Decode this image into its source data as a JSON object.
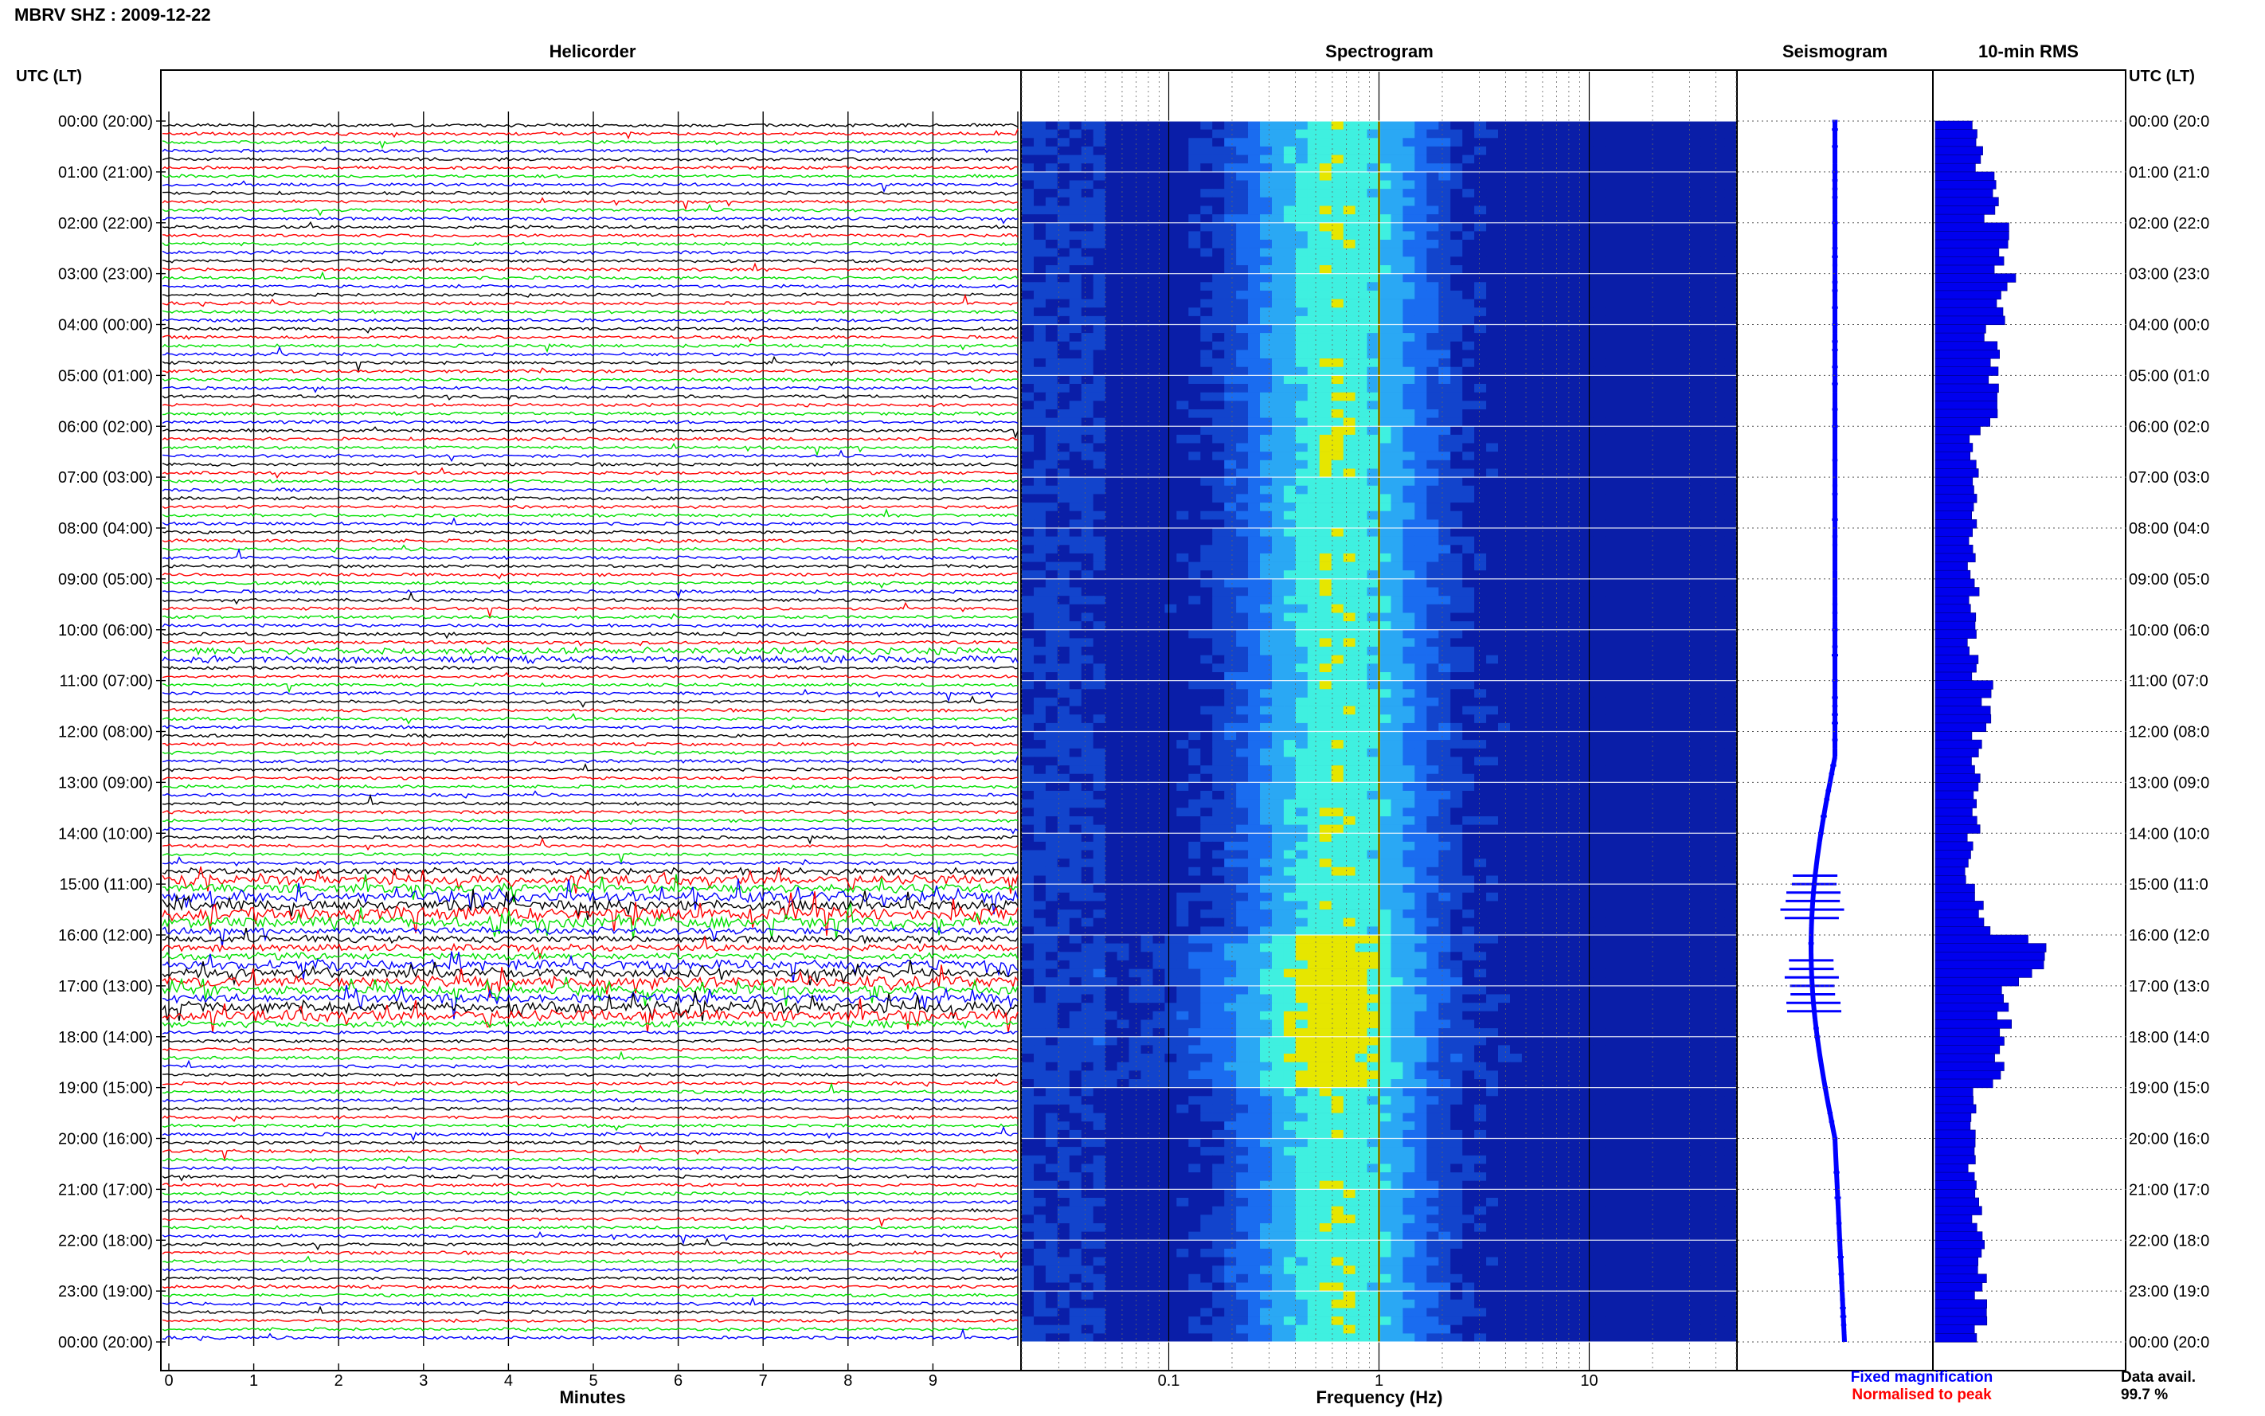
{
  "page": {
    "title": "MBRV SHZ : 2009-12-22"
  },
  "colors": {
    "trace_black": "#000000",
    "trace_red": "#ff0000",
    "trace_green": "#00e000",
    "trace_blue": "#0000ff",
    "spec_low": "#0a1ea8",
    "spec_mid": "#1a6cf0",
    "spec_high": "#3ff0e0",
    "spec_peak": "#e6e600",
    "rms_bar": "#0000ee"
  },
  "chart_data": [
    {
      "type": "line",
      "name": "helicorder",
      "title": "Helicorder",
      "xlabel": "Minutes",
      "ylabel_left": "UTC (LT)",
      "xlim": [
        0,
        10
      ],
      "x_ticks": [
        "0",
        "1",
        "2",
        "3",
        "4",
        "5",
        "6",
        "7",
        "8",
        "9"
      ],
      "row_labels_left": [
        "00:00 (20:00)",
        "01:00 (21:00)",
        "02:00 (22:00)",
        "03:00 (23:00)",
        "04:00 (00:00)",
        "05:00 (01:00)",
        "06:00 (02:00)",
        "07:00 (03:00)",
        "08:00 (04:00)",
        "09:00 (05:00)",
        "10:00 (06:00)",
        "11:00 (07:00)",
        "12:00 (08:00)",
        "13:00 (09:00)",
        "14:00 (10:00)",
        "15:00 (11:00)",
        "16:00 (12:00)",
        "17:00 (13:00)",
        "18:00 (14:00)",
        "19:00 (15:00)",
        "20:00 (16:00)",
        "21:00 (17:00)",
        "22:00 (18:00)",
        "23:00 (19:00)",
        "00:00 (20:00)"
      ],
      "traces_per_hour": 6,
      "trace_colour_cycle": [
        "black",
        "red",
        "green",
        "blue"
      ],
      "activity_by_10min_row": [
        1,
        1,
        1,
        1,
        1,
        1,
        1,
        1,
        1,
        1,
        1,
        1,
        1,
        1,
        1,
        1,
        1,
        1,
        1,
        1,
        1,
        1,
        1,
        1,
        1,
        1,
        1,
        1,
        1,
        1,
        1,
        1,
        1,
        1,
        1,
        1,
        1,
        1,
        1,
        1,
        1,
        1,
        1,
        1,
        1,
        1,
        1,
        1,
        1,
        1,
        1,
        1,
        1,
        1,
        1,
        1,
        1,
        1,
        1,
        1,
        1,
        1,
        2,
        2,
        1,
        1,
        1,
        1,
        1,
        1,
        1,
        1,
        1,
        1,
        1,
        1,
        1,
        1,
        1,
        1,
        1,
        1,
        1,
        1,
        1,
        1,
        1,
        1,
        2,
        3,
        3,
        4,
        4,
        5,
        4,
        2,
        2,
        2,
        2,
        3,
        3,
        4,
        3,
        3,
        4,
        4,
        2,
        1,
        1,
        1,
        1,
        1,
        1,
        1,
        1,
        1,
        1,
        1,
        1,
        1,
        1,
        1,
        1,
        1,
        1,
        1,
        1,
        1,
        1,
        1,
        1,
        1
      ]
    },
    {
      "type": "heatmap",
      "name": "spectrogram",
      "title": "Spectrogram",
      "xlabel": "Frequency (Hz)",
      "x_scale": "log",
      "xlim": [
        0.02,
        50
      ],
      "x_tick_labels": [
        "0.1",
        "1",
        "10"
      ],
      "x_tick_values": [
        0.1,
        1,
        10
      ],
      "rows": 144,
      "peak_band_hz": [
        0.2,
        2
      ],
      "persistent_line_hz": 1,
      "intense_hours_utc": [
        16,
        17,
        18
      ]
    },
    {
      "type": "line",
      "name": "seismogram",
      "title": "Seismogram",
      "legend": [
        "Fixed magnification",
        "Normalised to peak"
      ],
      "legend_colors": [
        "#0000ff",
        "#ff0000"
      ]
    },
    {
      "type": "bar",
      "name": "rms",
      "title": "10-min RMS",
      "orientation": "horizontal",
      "ylabel_right": "UTC (LT)",
      "row_labels_right": [
        "00:00 (20:0",
        "01:00 (21:0",
        "02:00 (22:0",
        "03:00 (23:0",
        "04:00 (00:0",
        "05:00 (01:0",
        "06:00 (02:0",
        "07:00 (03:0",
        "08:00 (04:0",
        "09:00 (05:0",
        "10:00 (06:0",
        "11:00 (07:0",
        "12:00 (08:0",
        "13:00 (09:0",
        "14:00 (10:0",
        "15:00 (11:0",
        "16:00 (12:0",
        "17:00 (13:0",
        "18:00 (14:0",
        "19:00 (15:0",
        "20:00 (16:0",
        "21:00 (17:0",
        "22:00 (18:0",
        "23:00 (19:0",
        "00:00 (20:0"
      ],
      "hourly_rms_relative": [
        0.4,
        0.52,
        0.64,
        0.7,
        0.55,
        0.58,
        0.38,
        0.35,
        0.34,
        0.38,
        0.35,
        0.52,
        0.4,
        0.42,
        0.32,
        0.34,
        1.0,
        0.7,
        0.66,
        0.38,
        0.36,
        0.4,
        0.48,
        0.44
      ]
    }
  ],
  "footer": {
    "data_avail_label": "Data avail.",
    "data_avail_value": "99.7 %"
  }
}
